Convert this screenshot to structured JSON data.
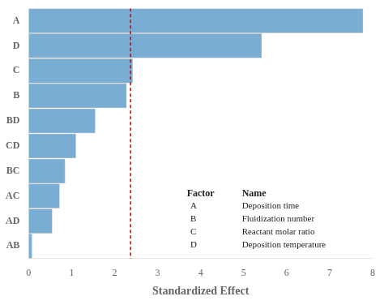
{
  "chart_data": {
    "type": "bar",
    "orientation": "horizontal",
    "categories": [
      "AB",
      "AD",
      "AC",
      "BC",
      "CD",
      "BD",
      "B",
      "C",
      "D",
      "A"
    ],
    "values": [
      0.08,
      0.55,
      0.72,
      0.85,
      1.1,
      1.55,
      2.28,
      2.42,
      5.42,
      7.78
    ],
    "color": "#7aadd4",
    "xlabel": "Standardized Effect",
    "xlim": [
      0,
      8
    ],
    "xticks": [
      0,
      1,
      2,
      3,
      4,
      5,
      6,
      7,
      8
    ],
    "grid": false,
    "reference_line": {
      "x": 2.37,
      "color": "#cc0000",
      "line_style": "dashed"
    },
    "annotation_table": {
      "columns": [
        "Factor",
        "Name"
      ],
      "rows": [
        [
          "A",
          "Deposition time"
        ],
        [
          "B",
          "Fluidization number"
        ],
        [
          "C",
          "Reactant molar ratio"
        ],
        [
          "D",
          "Deposition temperature"
        ]
      ]
    }
  }
}
